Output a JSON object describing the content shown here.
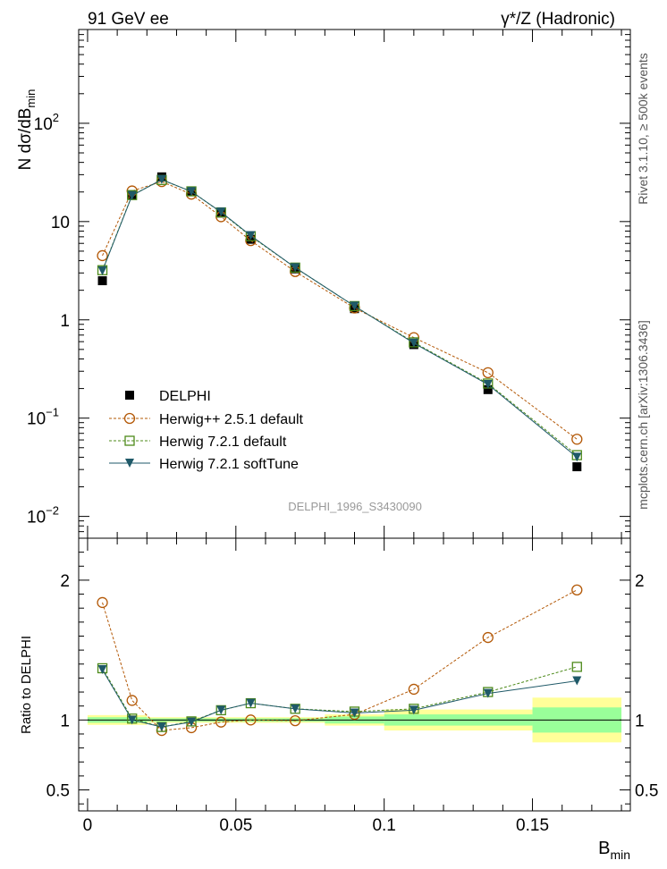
{
  "header": {
    "left": "91 GeV ee",
    "right": "γ*/Z (Hadronic)"
  },
  "side_labels": {
    "rivet": "Rivet 3.1.10, ≥ 500k events",
    "mcplots": "mcplots.cern.ch [arXiv:1306.3436]"
  },
  "watermark": "DELPHI_1996_S3430090",
  "chart_data": [
    {
      "type": "scatter",
      "panel": "main",
      "ylabel": "N dσ/dB",
      "ylabel_sub": "min",
      "yscale": "log",
      "ylim": [
        0.006,
        900
      ],
      "xlim": [
        -0.003,
        0.183
      ],
      "y_ticks": [
        {
          "value": 0.01,
          "base": "10",
          "exp": "−2"
        },
        {
          "value": 0.1,
          "base": "10",
          "exp": "−1"
        },
        {
          "value": 1,
          "base": "1",
          "exp": ""
        },
        {
          "value": 10,
          "base": "10",
          "exp": ""
        },
        {
          "value": 100,
          "base": "10",
          "exp": "2"
        }
      ],
      "legend_position": "lower-left",
      "x": [
        0.005,
        0.015,
        0.025,
        0.035,
        0.045,
        0.055,
        0.07,
        0.09,
        0.11,
        0.135,
        0.165
      ],
      "series": [
        {
          "name": "DELPHI",
          "color": "#000000",
          "marker": "square-filled",
          "line": "none",
          "values": [
            2.5,
            18.5,
            28.5,
            20.5,
            12.2,
            6.6,
            3.3,
            1.3,
            0.56,
            0.195,
            0.032
          ]
        },
        {
          "name": "Herwig++ 2.5.1 default",
          "color": "#b35806",
          "marker": "circle-open",
          "line": "dashed",
          "values": [
            4.5,
            20.5,
            25.5,
            19.0,
            11.2,
            6.4,
            3.1,
            1.32,
            0.66,
            0.29,
            0.061
          ]
        },
        {
          "name": "Herwig 7.2.1 default",
          "color": "#4d8a1a",
          "marker": "square-open",
          "line": "dashed",
          "values": [
            3.2,
            18.6,
            26.5,
            20.3,
            12.4,
            7.1,
            3.4,
            1.38,
            0.59,
            0.225,
            0.042
          ]
        },
        {
          "name": "Herwig 7.2.1 softTune",
          "color": "#1f5968",
          "marker": "triangle-down-filled",
          "line": "solid",
          "values": [
            3.15,
            18.4,
            26.8,
            20.2,
            12.5,
            7.2,
            3.4,
            1.38,
            0.58,
            0.22,
            0.04
          ]
        }
      ]
    },
    {
      "type": "scatter",
      "panel": "ratio",
      "ylabel": "Ratio to DELPHI",
      "xlabel": "B",
      "xlabel_sub": "min",
      "ylim": [
        0.35,
        2.3
      ],
      "xlim": [
        -0.003,
        0.183
      ],
      "y_ticks": [
        {
          "value": 0.5,
          "label": "0.5"
        },
        {
          "value": 1,
          "label": "1"
        },
        {
          "value": 2,
          "label": "2"
        }
      ],
      "x_ticks": [
        {
          "value": 0,
          "label": "0"
        },
        {
          "value": 0.05,
          "label": "0.05"
        },
        {
          "value": 0.1,
          "label": "0.1"
        },
        {
          "value": 0.15,
          "label": "0.15"
        }
      ],
      "x": [
        0.005,
        0.015,
        0.025,
        0.035,
        0.045,
        0.055,
        0.07,
        0.09,
        0.11,
        0.135,
        0.165
      ],
      "uncertainty_bands": [
        {
          "x0": 0.0,
          "x1": 0.02,
          "stat": 0.02,
          "total": 0.035
        },
        {
          "x0": 0.02,
          "x1": 0.08,
          "stat": 0.012,
          "total": 0.02
        },
        {
          "x0": 0.08,
          "x1": 0.1,
          "stat": 0.025,
          "total": 0.04
        },
        {
          "x0": 0.1,
          "x1": 0.15,
          "stat": 0.04,
          "total": 0.075
        },
        {
          "x0": 0.15,
          "x1": 0.18,
          "stat": 0.09,
          "total": 0.16
        }
      ],
      "series": [
        {
          "name": "Herwig++ 2.5.1 default",
          "color": "#b35806",
          "marker": "circle-open",
          "line": "dashed",
          "values": [
            1.84,
            1.14,
            0.925,
            0.945,
            0.985,
            1.0,
            0.995,
            1.04,
            1.22,
            1.59,
            1.93
          ]
        },
        {
          "name": "Herwig 7.2.1 default",
          "color": "#4d8a1a",
          "marker": "square-open",
          "line": "dashed",
          "values": [
            1.37,
            1.01,
            0.95,
            0.99,
            1.07,
            1.12,
            1.08,
            1.06,
            1.08,
            1.2,
            1.38
          ]
        },
        {
          "name": "Herwig 7.2.1 softTune",
          "color": "#1f5968",
          "marker": "triangle-down-filled",
          "line": "solid",
          "values": [
            1.36,
            1.0,
            0.95,
            0.985,
            1.07,
            1.12,
            1.08,
            1.05,
            1.07,
            1.19,
            1.28
          ]
        }
      ]
    }
  ]
}
